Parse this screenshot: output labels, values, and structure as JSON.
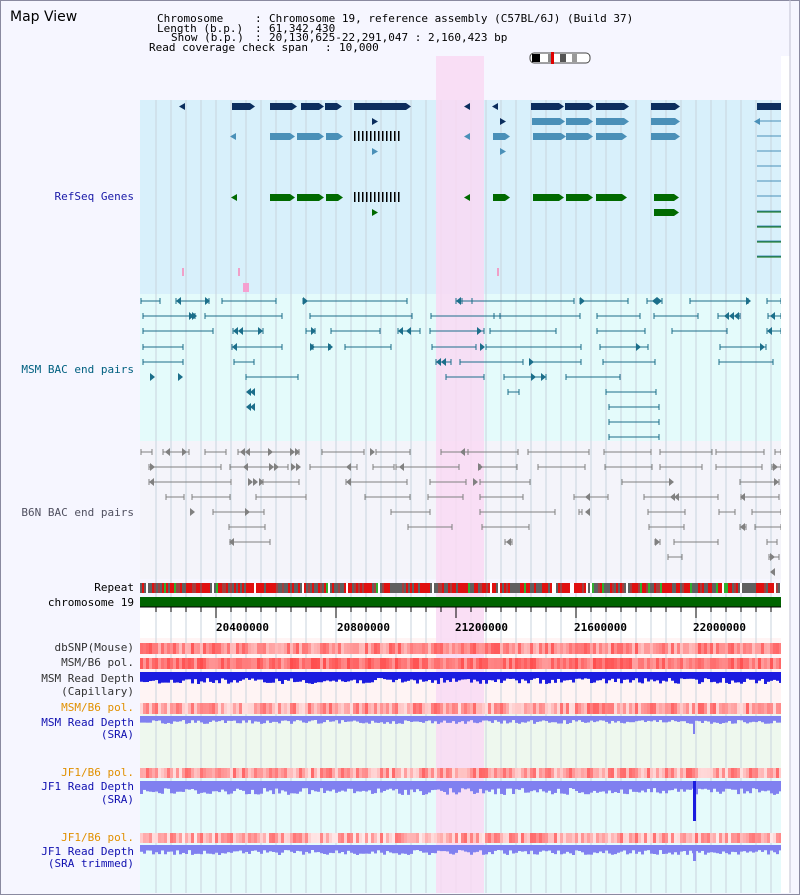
{
  "page": {
    "title": "Map View"
  },
  "header": {
    "chromosome_label": "Chromosome",
    "chromosome_value": "Chromosome 19, reference assembly (C57BL/6J) (Build 37)",
    "length_label": "Length (b.p.)",
    "length_value": "61,342,430",
    "show_label": "Show (b.p.)",
    "show_value": "20,130,625-22,291,047 : 2,160,423 bp",
    "span_label": "Read coverage check span",
    "span_value": "10,000"
  },
  "tracks": {
    "refseq": "RefSeq Genes",
    "msm_bac": "MSM BAC end pairs",
    "b6n_bac": "B6N BAC end pairs",
    "repeat": "Repeat",
    "chromosome": "chromosome 19",
    "dbsnp": "dbSNP(Mouse)",
    "msm_pol": "MSM/B6 pol.",
    "msm_depth_cap_1": "MSM Read Depth",
    "msm_depth_cap_2": "(Capillary)",
    "msm_pol_2": "MSM/B6 pol.",
    "msm_depth_sra_1": "MSM Read Depth",
    "msm_depth_sra_2": "(SRA)",
    "jf1_pol": "JF1/B6 pol.",
    "jf1_depth_1": "JF1 Read Depth",
    "jf1_depth_2": "(SRA)",
    "jf1_pol_2": "JF1/B6 pol.",
    "jf1_trim_1": "JF1 Read Depth",
    "jf1_trim_2": "(SRA trimmed)"
  },
  "axis": {
    "ticks": [
      "20400000",
      "20800000",
      "21200000",
      "21600000",
      "22000000"
    ]
  },
  "colors": {
    "refseq_bg": "#d8f0fb",
    "msm_bg": "#e4fbfb",
    "b6n_bg": "#f4f4fa",
    "highlight": "#f9d9f3",
    "dark_gene": "#0b2e5e",
    "light_gene": "#4a90b8",
    "green_gene": "#006a00",
    "msm_pair": "#1b6e8a",
    "b6n_pair": "#808080",
    "chromosome": "#006400",
    "snp_red": "#ff3a3a",
    "depth_blue": "#1c1ce0",
    "sra_blue": "#8080f0"
  }
}
